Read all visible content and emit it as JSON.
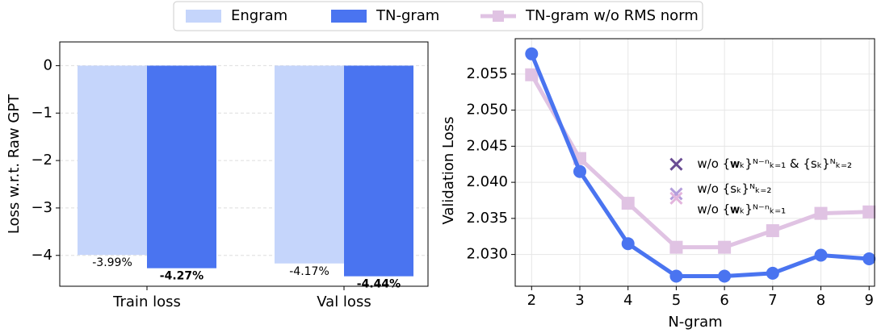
{
  "chart_data": [
    {
      "type": "bar",
      "ylabel": "Loss w.r.t. Raw GPT",
      "categories": [
        "Train loss",
        "Val loss"
      ],
      "series": [
        {
          "name": "Engram",
          "color": "#c5d5fb",
          "values": [
            -3.99,
            -4.17
          ],
          "value_labels": [
            "-3.99%",
            "-4.17%"
          ],
          "bold": false
        },
        {
          "name": "TN-gram",
          "color": "#4a74f0",
          "values": [
            -4.27,
            -4.44
          ],
          "value_labels": [
            "-4.27%",
            "-4.44%"
          ],
          "bold": true
        }
      ],
      "ylim": [
        -4.65,
        0.5
      ],
      "yticks": [
        0,
        {
          "value": -1,
          "label": "−1"
        },
        {
          "value": -2,
          "label": "−2"
        },
        {
          "value": -3,
          "label": "−3"
        },
        {
          "value": -4,
          "label": "−4"
        }
      ],
      "grid": true
    },
    {
      "type": "line",
      "xlabel": "N-gram",
      "ylabel": "Validation Loss",
      "x": [
        2,
        3,
        4,
        5,
        6,
        7,
        8,
        9
      ],
      "series": [
        {
          "color": "#4a74f0",
          "marker": "circle",
          "values": [
            2.0578,
            2.0415,
            2.0315,
            2.027,
            2.027,
            2.0274,
            2.0299,
            2.0294
          ]
        },
        {
          "name": "TN-gram w/o RMS norm",
          "color": "#e0c3e3",
          "marker": "square",
          "values": [
            2.0549,
            2.0433,
            2.0371,
            2.031,
            2.031,
            2.0333,
            2.0357,
            2.0359
          ]
        }
      ],
      "annotations": [
        {
          "x": 5,
          "y": 2.0425,
          "text": "w/o {𝐰ₖ}ᴺ⁻ⁿₖ₌₁ & {sₖ}ᴺₖ₌₂",
          "color": "#6a4c93"
        },
        {
          "x": 5,
          "y": 2.0384,
          "text": "w/o {sₖ}ᴺₖ₌₂",
          "color": "#b39ddb"
        },
        {
          "x": 5,
          "y": 2.0378,
          "text": "w/o {𝐰ₖ}ᴺ⁻ⁿₖ₌₁",
          "color": "#e3b5dd"
        }
      ],
      "xlim": [
        1.66,
        9.13
      ],
      "ylim": [
        2.0256,
        2.0599
      ],
      "xticks": [
        2,
        3,
        4,
        5,
        6,
        7,
        8,
        9
      ],
      "yticks": [
        {
          "value": 2.03,
          "label": "2.030"
        },
        {
          "value": 2.035,
          "label": "2.035"
        },
        {
          "value": 2.04,
          "label": "2.040"
        },
        {
          "value": 2.045,
          "label": "2.045"
        },
        {
          "value": 2.05,
          "label": "2.050"
        },
        {
          "value": 2.055,
          "label": "2.055"
        }
      ],
      "grid": true
    }
  ]
}
